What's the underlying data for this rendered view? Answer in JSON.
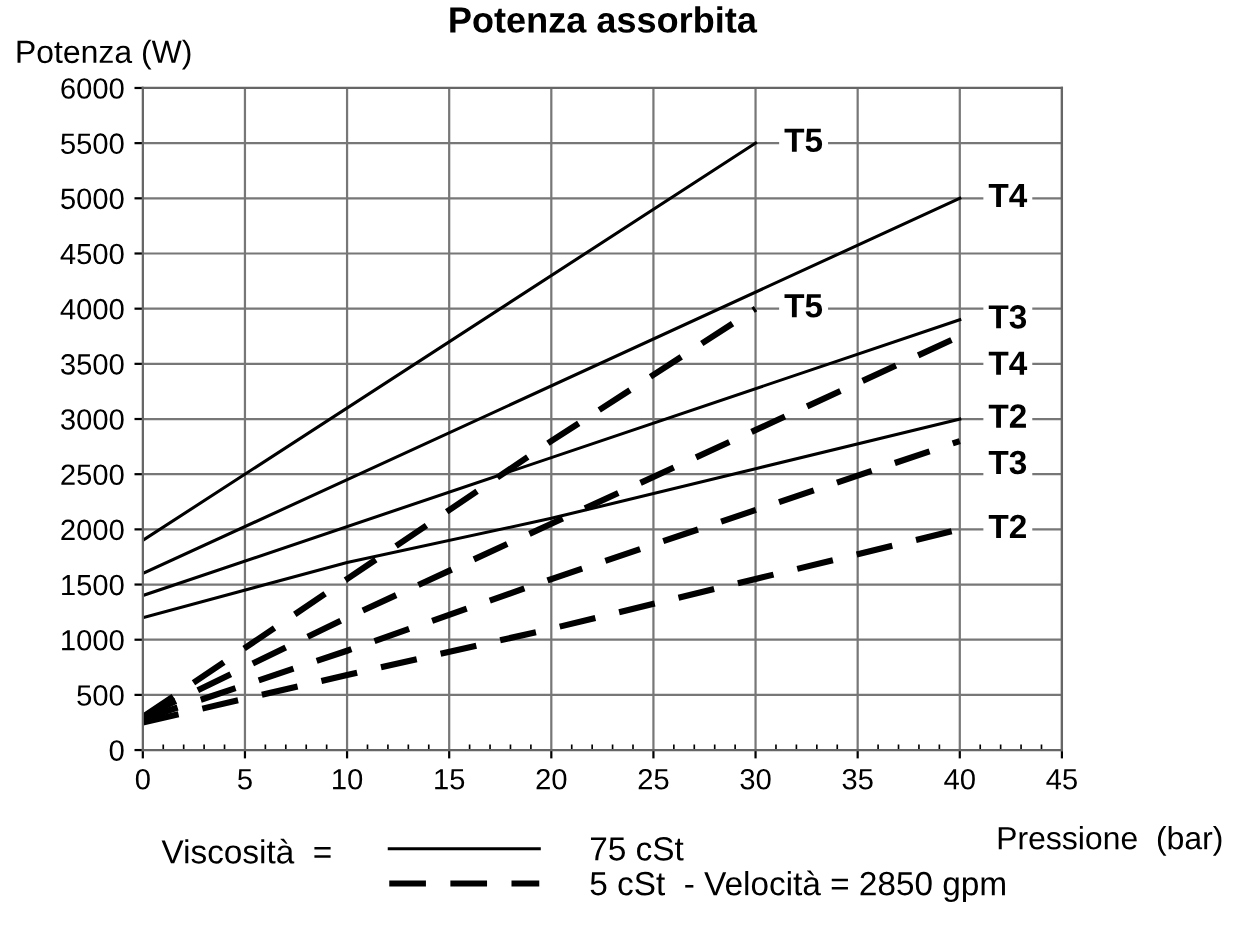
{
  "chart_data": {
    "type": "line",
    "title": "Potenza assorbita",
    "ylabel": "Potenza (W)",
    "xlabel": "Pressione  (bar)",
    "xlim": [
      0,
      45
    ],
    "xticks": [
      0,
      5,
      10,
      15,
      20,
      25,
      30,
      35,
      40,
      45
    ],
    "ylim": [
      0,
      6000
    ],
    "yticks": [
      0,
      500,
      1000,
      1500,
      2000,
      2500,
      3000,
      3500,
      4000,
      4500,
      5000,
      5500,
      6000
    ],
    "grid": true,
    "legend_title": "Viscosità  =",
    "annotations": [
      "75 cSt",
      "5 cSt  - Velocità = 2850 gpm"
    ],
    "series": [
      {
        "name": "T5",
        "color": "#000000",
        "line_style": "solid",
        "x": [
          0,
          30
        ],
        "values": [
          1900,
          5500
        ]
      },
      {
        "name": "T4",
        "color": "#000000",
        "line_style": "solid",
        "x": [
          0,
          40
        ],
        "values": [
          1600,
          5000
        ]
      },
      {
        "name": "T3",
        "color": "#000000",
        "line_style": "solid",
        "x": [
          0,
          40
        ],
        "values": [
          1400,
          3900
        ]
      },
      {
        "name": "T2",
        "color": "#000000",
        "line_style": "solid",
        "x": [
          0,
          10,
          20,
          30,
          40
        ],
        "values": [
          1200,
          1700,
          2100,
          2550,
          3000
        ]
      },
      {
        "name": "T5",
        "color": "#000000",
        "line_style": "dashed",
        "x": [
          0,
          10,
          20,
          30
        ],
        "values": [
          300,
          1550,
          2800,
          4000
        ]
      },
      {
        "name": "T4",
        "color": "#000000",
        "line_style": "dashed",
        "x": [
          0,
          10,
          20,
          40
        ],
        "values": [
          300,
          1200,
          2050,
          3750
        ]
      },
      {
        "name": "T3",
        "color": "#000000",
        "line_style": "dashed",
        "x": [
          0,
          10,
          20,
          40
        ],
        "values": [
          280,
          900,
          1550,
          2800
        ]
      },
      {
        "name": "T2",
        "color": "#000000",
        "line_style": "dashed",
        "x": [
          0,
          10,
          20,
          30,
          40
        ],
        "values": [
          250,
          680,
          1100,
          1550,
          2000
        ]
      }
    ]
  }
}
